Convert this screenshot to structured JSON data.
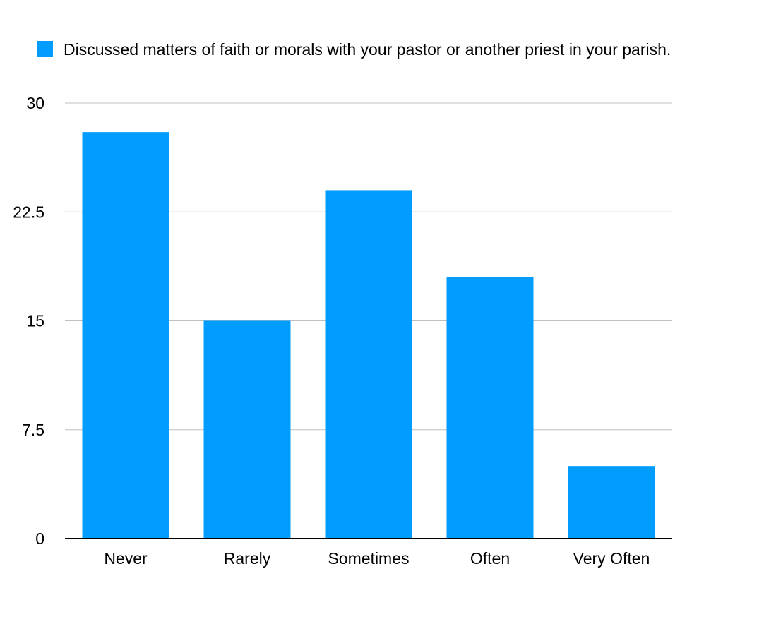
{
  "chart_data": {
    "type": "bar",
    "title": "",
    "xlabel": "",
    "ylabel": "",
    "categories": [
      "Never",
      "Rarely",
      "Sometimes",
      "Often",
      "Very Often"
    ],
    "series": [
      {
        "name": "Discussed matters of faith or morals with your pastor or another priest in your parish.",
        "values": [
          28,
          15,
          24,
          18,
          5
        ],
        "color": "#009DFF"
      }
    ],
    "ylim": [
      0,
      30
    ],
    "yticks": [
      "0",
      "7.5",
      "15",
      "22.5",
      "30"
    ],
    "grid": true,
    "legend_position": "top-left"
  }
}
